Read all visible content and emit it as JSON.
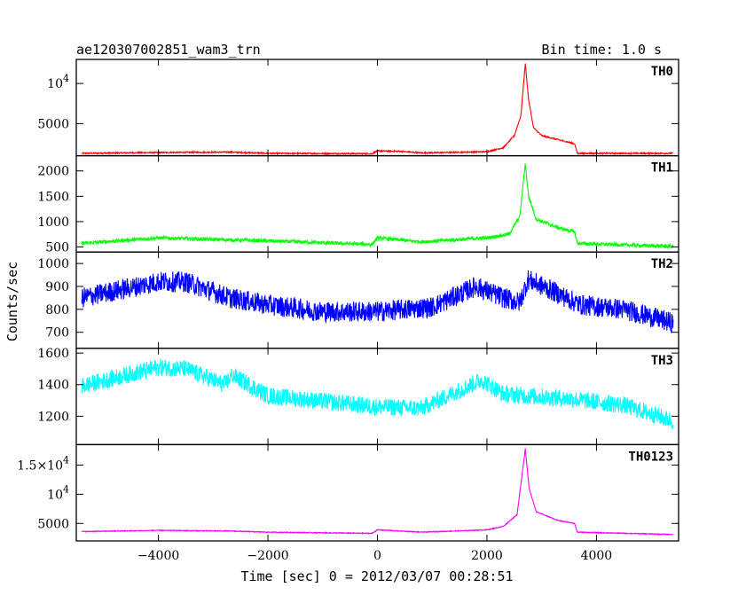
{
  "header": {
    "title": "ae120307002851_wam3_trn",
    "bin_time": "Bin time: 1.0 s"
  },
  "chart_data": {
    "type": "line",
    "xlabel": "Time [sec] 0 = 2012/03/07 00:28:51",
    "ylabel": "Counts/sec",
    "xlim": [
      -5500,
      5500
    ],
    "xticks": [
      -4000,
      -2000,
      0,
      2000,
      4000
    ],
    "xtick_labels": [
      "−4000",
      "−2000",
      "0",
      "2000",
      "4000"
    ],
    "panels": [
      {
        "name": "TH0",
        "color": "#ff0000",
        "ylim": [
          1000,
          13000
        ],
        "yticks": [
          5000,
          10000
        ],
        "ytick_labels": [
          "5000",
          "10^4"
        ],
        "noise": 80,
        "points": [
          [
            -5400,
            1300
          ],
          [
            -4000,
            1400
          ],
          [
            -2700,
            1450
          ],
          [
            -2000,
            1300
          ],
          [
            -100,
            1250
          ],
          [
            0,
            1600
          ],
          [
            400,
            1550
          ],
          [
            800,
            1350
          ],
          [
            2000,
            1500
          ],
          [
            2300,
            2000
          ],
          [
            2500,
            3500
          ],
          [
            2620,
            6000
          ],
          [
            2700,
            12500
          ],
          [
            2760,
            8000
          ],
          [
            2850,
            4500
          ],
          [
            3000,
            3500
          ],
          [
            3300,
            3000
          ],
          [
            3600,
            2500
          ],
          [
            3650,
            1300
          ],
          [
            5400,
            1300
          ]
        ]
      },
      {
        "name": "TH1",
        "color": "#00ff00",
        "ylim": [
          400,
          2300
        ],
        "yticks": [
          500,
          1000,
          1500,
          2000
        ],
        "ytick_labels": [
          "500",
          "1000",
          "1500",
          "2000"
        ],
        "noise": 35,
        "points": [
          [
            -5400,
            570
          ],
          [
            -4000,
            680
          ],
          [
            -2700,
            640
          ],
          [
            -2000,
            620
          ],
          [
            -100,
            550
          ],
          [
            0,
            680
          ],
          [
            800,
            600
          ],
          [
            2000,
            680
          ],
          [
            2400,
            750
          ],
          [
            2600,
            1100
          ],
          [
            2700,
            2150
          ],
          [
            2760,
            1500
          ],
          [
            2900,
            1050
          ],
          [
            3300,
            880
          ],
          [
            3600,
            800
          ],
          [
            3650,
            570
          ],
          [
            5400,
            510
          ]
        ]
      },
      {
        "name": "TH2",
        "color": "#0000ff",
        "ylim": [
          630,
          1050
        ],
        "yticks": [
          700,
          800,
          900,
          1000
        ],
        "ytick_labels": [
          "700",
          "800",
          "900",
          "1000"
        ],
        "noise": 45,
        "points": [
          [
            -5400,
            850
          ],
          [
            -4000,
            920
          ],
          [
            -3500,
            920
          ],
          [
            -2700,
            850
          ],
          [
            -2000,
            820
          ],
          [
            -1000,
            790
          ],
          [
            0,
            790
          ],
          [
            1000,
            810
          ],
          [
            1800,
            900
          ],
          [
            2300,
            850
          ],
          [
            2600,
            830
          ],
          [
            2750,
            930
          ],
          [
            3200,
            880
          ],
          [
            3700,
            820
          ],
          [
            4500,
            800
          ],
          [
            5400,
            740
          ]
        ]
      },
      {
        "name": "TH3",
        "color": "#00ffff",
        "ylim": [
          1020,
          1630
        ],
        "yticks": [
          1200,
          1400,
          1600
        ],
        "ytick_labels": [
          "1200",
          "1400",
          "1600"
        ],
        "noise": 55,
        "points": [
          [
            -5400,
            1390
          ],
          [
            -4000,
            1510
          ],
          [
            -3500,
            1500
          ],
          [
            -2800,
            1400
          ],
          [
            -2650,
            1460
          ],
          [
            -2000,
            1330
          ],
          [
            0,
            1260
          ],
          [
            800,
            1250
          ],
          [
            1900,
            1430
          ],
          [
            2300,
            1340
          ],
          [
            3500,
            1310
          ],
          [
            4500,
            1270
          ],
          [
            5400,
            1170
          ]
        ]
      },
      {
        "name": "TH0123",
        "color": "#ff00ff",
        "ylim": [
          2000,
          18500
        ],
        "yticks": [
          5000,
          10000,
          15000
        ],
        "ytick_labels": [
          "5000",
          "10^4",
          "1.5×10^4"
        ],
        "noise": 70,
        "points": [
          [
            -5400,
            3600
          ],
          [
            -4000,
            3800
          ],
          [
            -2700,
            3700
          ],
          [
            -2000,
            3500
          ],
          [
            -100,
            3300
          ],
          [
            0,
            3900
          ],
          [
            800,
            3500
          ],
          [
            2000,
            3900
          ],
          [
            2300,
            4500
          ],
          [
            2550,
            6500
          ],
          [
            2700,
            17800
          ],
          [
            2770,
            11000
          ],
          [
            2900,
            7000
          ],
          [
            3300,
            5500
          ],
          [
            3600,
            5000
          ],
          [
            3650,
            3500
          ],
          [
            5400,
            3100
          ]
        ]
      }
    ]
  }
}
